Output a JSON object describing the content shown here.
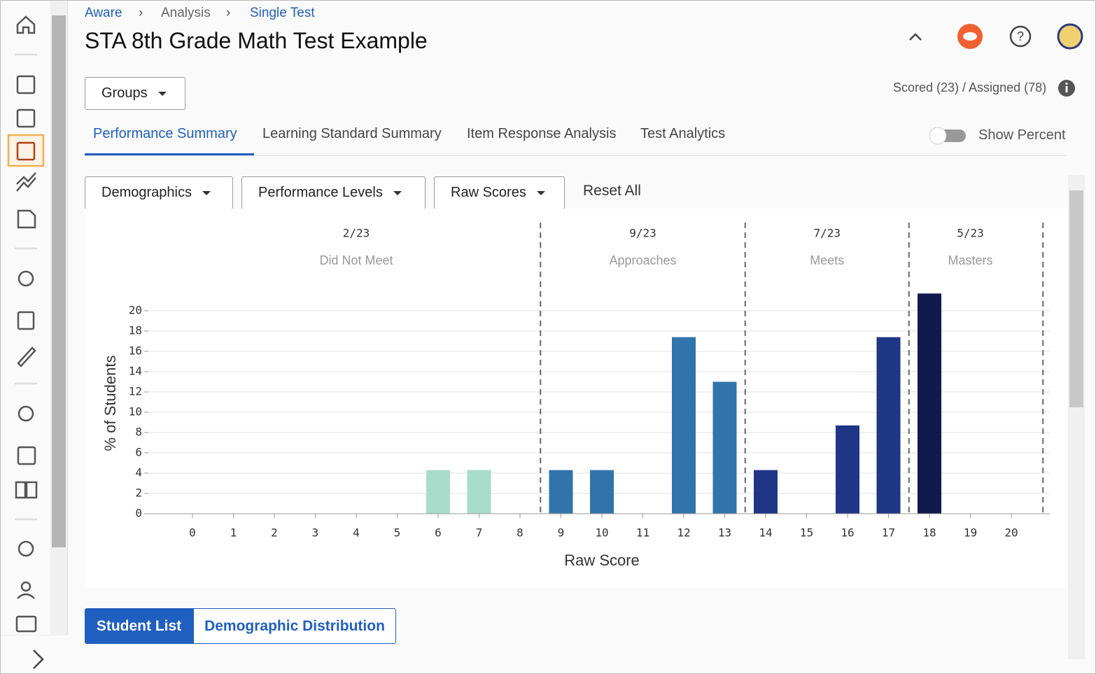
{
  "breadcrumb": [
    "Aware",
    "Analysis",
    "Single Test"
  ],
  "header": {
    "title": "STA 8th Grade Math Test Example"
  },
  "groups_button": "Groups",
  "scored_assigned": "Scored (23) / Assigned (78)",
  "tabs": [
    "Performance Summary",
    "Learning Standard Summary",
    "Item Response Analysis",
    "Test Analytics"
  ],
  "show_percent": "Show Percent",
  "filters": [
    "Demographics",
    "Performance Levels",
    "Raw Scores"
  ],
  "reset_all": "Reset All",
  "bottom_tabs": [
    "Student List",
    "Demographic Distribution"
  ],
  "chart_data": {
    "type": "bar",
    "x_label": "Raw Score",
    "y_label": "% of Students",
    "categories": [
      "0",
      "1",
      "2",
      "3",
      "4",
      "5",
      "6",
      "7",
      "8",
      "9",
      "10",
      "11",
      "12",
      "13",
      "14",
      "15",
      "16",
      "17",
      "18",
      "19",
      "20"
    ],
    "values": [
      0,
      0,
      0,
      0,
      0,
      0,
      4.3,
      4.3,
      0,
      4.3,
      4.3,
      0,
      17.4,
      13,
      4.3,
      0,
      8.7,
      17.4,
      21.7,
      0,
      0
    ],
    "levels": [
      {
        "name": "Did Not Meet",
        "count": "2/23",
        "range": [
          0,
          8
        ],
        "color": "#a8dccb"
      },
      {
        "name": "Approaches",
        "count": "9/23",
        "range": [
          9,
          13
        ],
        "color": "#3174ab"
      },
      {
        "name": "Meets",
        "count": "7/23",
        "range": [
          14,
          17
        ],
        "color": "#1f3586"
      },
      {
        "name": "Masters",
        "count": "5/23",
        "range": [
          18,
          20
        ],
        "color": "#111a4d"
      }
    ],
    "ylim": [
      0,
      22
    ],
    "yticks": [
      0,
      2,
      4,
      6,
      8,
      10,
      12,
      14,
      16,
      18,
      20
    ],
    "grid": true
  }
}
